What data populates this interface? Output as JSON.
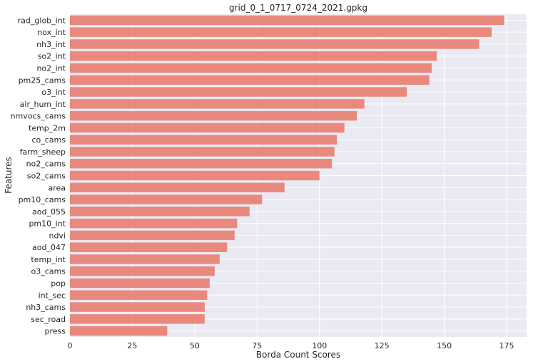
{
  "chart_data": {
    "type": "bar",
    "orientation": "horizontal",
    "title": "grid_0_1_0717_0724_2021.gpkg",
    "xlabel": "Borda Count Scores",
    "ylabel": "Features",
    "xlim": [
      0,
      183
    ],
    "xticks": [
      0,
      25,
      50,
      75,
      100,
      125,
      150,
      175
    ],
    "grid": true,
    "bar_color": "#e9897e",
    "background_color": "#eaeaf2",
    "categories": [
      "rad_glob_int",
      "nox_int",
      "nh3_int",
      "so2_int",
      "no2_int",
      "pm25_cams",
      "o3_int",
      "air_hum_int",
      "nmvocs_cams",
      "temp_2m",
      "co_cams",
      "farm_sheep",
      "no2_cams",
      "so2_cams",
      "area",
      "pm10_cams",
      "aod_055",
      "pm10_int",
      "ndvi",
      "aod_047",
      "temp_int",
      "o3_cams",
      "pop",
      "int_sec",
      "nh3_cams",
      "sec_road",
      "press"
    ],
    "values": [
      174,
      169,
      164,
      147,
      145,
      144,
      135,
      118,
      115,
      110,
      107,
      106,
      105,
      100,
      86,
      77,
      72,
      67,
      66,
      63,
      60,
      58,
      56,
      55,
      54,
      54,
      39
    ]
  }
}
